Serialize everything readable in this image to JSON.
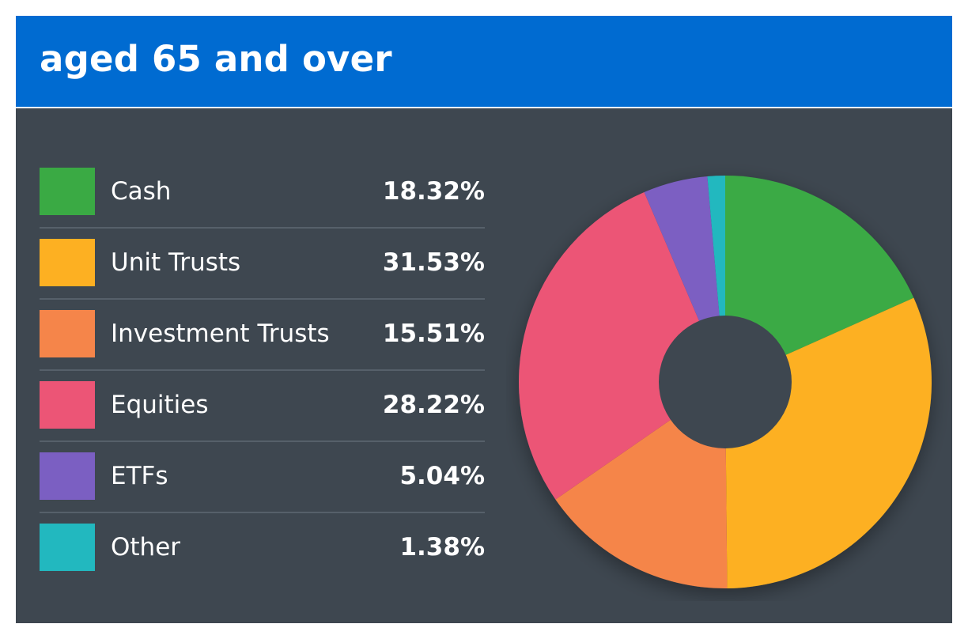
{
  "header": {
    "title": "aged 65 and over"
  },
  "colors": {
    "header_bg": "#006bd1",
    "panel_bg": "#3e4750",
    "divider": "#56606a"
  },
  "chart_data": {
    "type": "pie",
    "style": "donut",
    "title": "aged 65 and over",
    "legend_position": "left",
    "categories": [
      "Cash",
      "Unit Trusts",
      "Investment Trusts",
      "Equities",
      "ETFs",
      "Other"
    ],
    "values": [
      18.32,
      31.53,
      15.51,
      28.22,
      5.04,
      1.38
    ],
    "value_labels": [
      "18.32%",
      "31.53%",
      "15.51%",
      "28.22%",
      "5.04%",
      "1.38%"
    ],
    "colors": [
      "#3aaa44",
      "#fdb022",
      "#f5854a",
      "#ec5576",
      "#7b5fc2",
      "#22b8bf"
    ]
  }
}
